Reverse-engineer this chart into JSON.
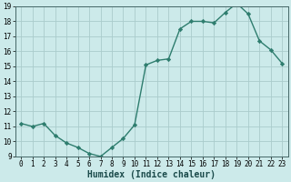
{
  "x": [
    0,
    1,
    2,
    3,
    4,
    5,
    6,
    7,
    8,
    9,
    10,
    11,
    12,
    13,
    14,
    15,
    16,
    17,
    18,
    19,
    20,
    21,
    22,
    23
  ],
  "y": [
    11.2,
    11.0,
    11.2,
    10.4,
    9.9,
    9.6,
    9.2,
    9.0,
    9.6,
    10.2,
    11.1,
    15.1,
    15.4,
    15.5,
    17.5,
    18.0,
    18.0,
    17.9,
    18.6,
    19.2,
    18.5,
    16.7,
    16.1,
    15.2
  ],
  "line_color": "#2e7d6e",
  "marker": "D",
  "markersize": 2.2,
  "linewidth": 1.0,
  "xlabel": "Humidex (Indice chaleur)",
  "xlabel_fontsize": 7,
  "bg_color": "#cceaea",
  "grid_color": "#aacccc",
  "ylim": [
    9,
    19
  ],
  "xlim": [
    -0.5,
    23.5
  ],
  "yticks": [
    9,
    10,
    11,
    12,
    13,
    14,
    15,
    16,
    17,
    18,
    19
  ],
  "xticks": [
    0,
    1,
    2,
    3,
    4,
    5,
    6,
    7,
    8,
    9,
    10,
    11,
    12,
    13,
    14,
    15,
    16,
    17,
    18,
    19,
    20,
    21,
    22,
    23
  ],
  "tick_fontsize": 5.5
}
